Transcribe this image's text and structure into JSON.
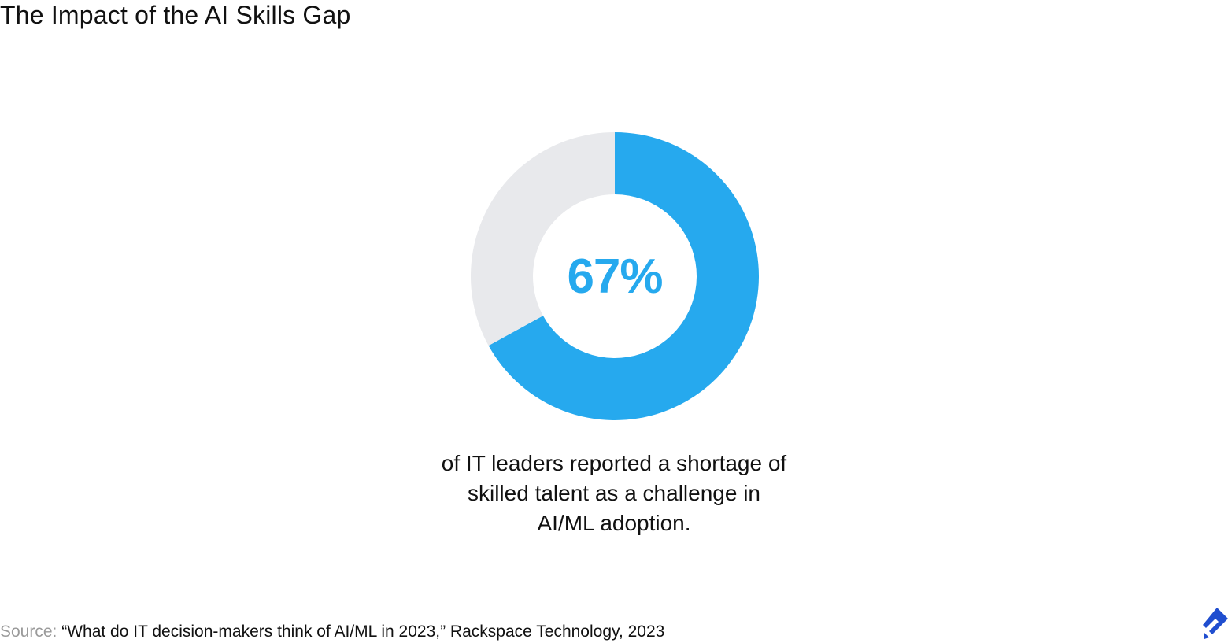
{
  "title": "The Impact of the AI Skills Gap",
  "chart_data": {
    "type": "pie",
    "variant": "donut",
    "title": "The Impact of the AI Skills Gap",
    "center_label": "67%",
    "slices": [
      {
        "label": "",
        "value": 67,
        "color": "#26a9ee"
      },
      {
        "label": "",
        "value": 33,
        "color": "#e8e9ec"
      }
    ]
  },
  "caption": {
    "line1": "of IT leaders reported a shortage of",
    "line2": "skilled talent as a challenge in",
    "line3": "AI/ML adoption."
  },
  "source": {
    "label": "Source:",
    "text": "“What do IT decision-makers think of AI/ML in 2023,” Rackspace Technology, 2023"
  },
  "logo": {
    "icon": "toptal-logo-icon",
    "color": "#204ecf"
  }
}
